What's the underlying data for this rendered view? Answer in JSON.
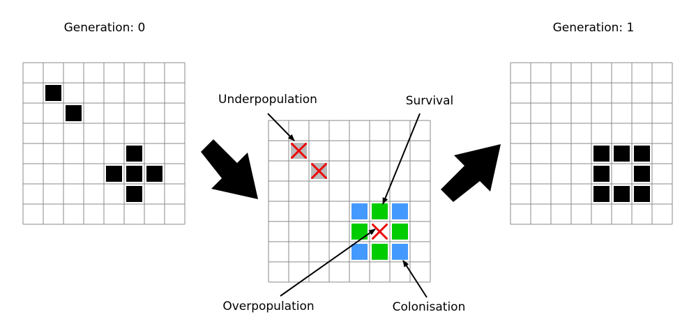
{
  "labels": {
    "gen0": "Generation: 0",
    "gen1": "Generation: 1",
    "underpopulation": "Underpopulation",
    "survival": "Survival",
    "overpopulation": "Overpopulation",
    "colonisation": "Colonisation"
  },
  "grid_size": 8,
  "colors": {
    "alive": "#000000",
    "dying": "#bbbbbb",
    "survive": "#00cc00",
    "born": "#4499ff",
    "cross": "#ee0000",
    "grid_line": "#888888"
  },
  "grids": {
    "generation_0": {
      "alive": [
        [
          1,
          1
        ],
        [
          2,
          2
        ],
        [
          5,
          4
        ],
        [
          4,
          5
        ],
        [
          5,
          5
        ],
        [
          6,
          5
        ],
        [
          5,
          6
        ]
      ]
    },
    "transition": {
      "dying": [
        [
          1,
          1
        ],
        [
          2,
          2
        ]
      ],
      "survive": [
        [
          5,
          4
        ],
        [
          4,
          5
        ],
        [
          6,
          5
        ],
        [
          5,
          6
        ]
      ],
      "overpopulated": [
        [
          5,
          5
        ]
      ],
      "born": [
        [
          4,
          4
        ],
        [
          6,
          4
        ],
        [
          4,
          6
        ],
        [
          6,
          6
        ]
      ]
    },
    "generation_1": {
      "alive": [
        [
          4,
          4
        ],
        [
          5,
          4
        ],
        [
          6,
          4
        ],
        [
          4,
          5
        ],
        [
          6,
          5
        ],
        [
          4,
          6
        ],
        [
          5,
          6
        ],
        [
          6,
          6
        ]
      ]
    }
  }
}
